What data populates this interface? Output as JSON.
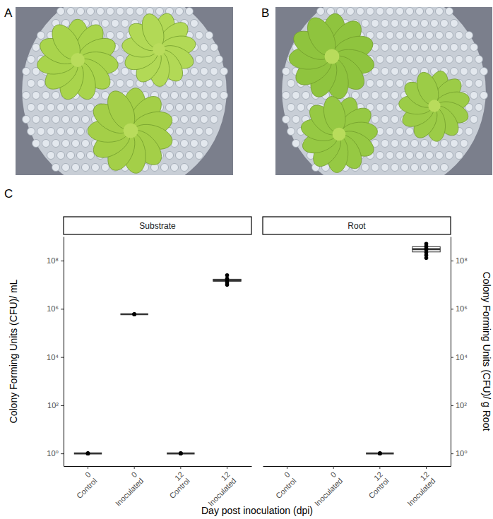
{
  "figure": {
    "panel_labels": [
      "A",
      "B",
      "C"
    ],
    "x_label": "Day post inoculation (dpi)"
  },
  "chart_data": [
    {
      "type": "box",
      "title": "Substrate",
      "y_label": "Colony Forming Units (CFU)/ mL",
      "log": "y",
      "categories": [
        [
          "0",
          "Control"
        ],
        [
          "0",
          "Inoculated"
        ],
        [
          "12",
          "Control"
        ],
        [
          "12",
          "Inoculated"
        ]
      ],
      "points": [
        [
          1,
          1,
          1
        ],
        [
          600000,
          600000,
          600000
        ],
        [
          1,
          1,
          1
        ],
        [
          10000000,
          12000000,
          15000000,
          18000000,
          25000000
        ]
      ],
      "boxes": [
        {
          "q1": 1,
          "median": 1,
          "q3": 1
        },
        {
          "q1": 600000,
          "median": 600000,
          "q3": 600000
        },
        {
          "q1": 1,
          "median": 1,
          "q3": 1
        },
        {
          "q1": 14000000,
          "median": 15000000,
          "q3": 17000000
        }
      ],
      "color": "#000000",
      "ylim": [
        0.3,
        1000000000
      ],
      "yticks": [
        {
          "value": 1,
          "label": "10⁰"
        },
        {
          "value": 100,
          "label": "10²"
        },
        {
          "value": 10000,
          "label": "10⁴"
        },
        {
          "value": 1000000,
          "label": "10⁶"
        },
        {
          "value": 100000000,
          "label": "10⁸"
        }
      ]
    },
    {
      "type": "box",
      "title": "Root",
      "y_label": "Colony Forming Units (CFU)/ g Root",
      "log": "y",
      "categories": [
        [
          "0",
          "Control"
        ],
        [
          "0",
          "Inoculated"
        ],
        [
          "12",
          "Control"
        ],
        [
          "12",
          "Inoculated"
        ]
      ],
      "points": [
        [],
        [],
        [
          1,
          1,
          1
        ],
        [
          130000000,
          170000000,
          220000000,
          280000000,
          330000000,
          400000000,
          500000000
        ]
      ],
      "boxes": [
        null,
        null,
        {
          "q1": 1,
          "median": 1,
          "q3": 1
        },
        {
          "q1": 230000000,
          "median": 300000000,
          "q3": 380000000
        }
      ],
      "color": "#000000",
      "ylim": [
        0.3,
        1000000000
      ],
      "yticks": [
        {
          "value": 1,
          "label": "10⁰"
        },
        {
          "value": 100,
          "label": "10²"
        },
        {
          "value": 10000,
          "label": "10⁴"
        },
        {
          "value": 1000000,
          "label": "10⁶"
        },
        {
          "value": 100000000,
          "label": "10⁸"
        }
      ]
    }
  ]
}
